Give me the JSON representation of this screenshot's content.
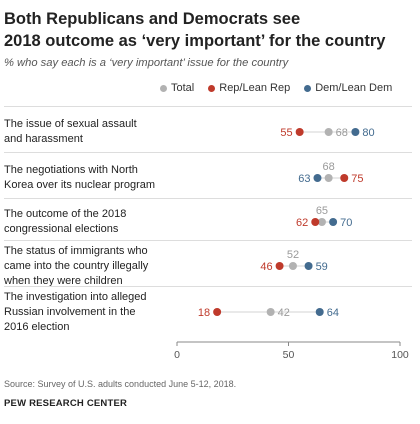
{
  "title_line1": "Both Republicans and Democrats see",
  "title_line2": "2018 outcome as ‘very important’ for the country",
  "subtitle": "% who say each is a ‘very important’ issue for the country",
  "legend": {
    "total": "Total",
    "rep": "Rep/Lean Rep",
    "dem": "Dem/Lean Dem"
  },
  "colors": {
    "total": "#b2b2b2",
    "rep": "#bf3a2b",
    "dem": "#436b8f",
    "axis": "#888888"
  },
  "chart_data": {
    "type": "scatter",
    "title": "Both Republicans and Democrats see 2018 outcome as ‘very important’ for the country",
    "subtitle": "% who say each is a ‘very important’ issue for the country",
    "xlim": [
      0,
      100
    ],
    "xticks": [
      "0",
      "50",
      "100"
    ],
    "categories": [
      [
        "The issue of sexual assault",
        "and harassment"
      ],
      [
        "The negotiations with North",
        "Korea over its nuclear program"
      ],
      [
        "The outcome of the 2018",
        "congressional elections"
      ],
      [
        "The status of immigrants who",
        "came into the country illegally",
        "when they were children"
      ],
      [
        "The investigation into alleged",
        "Russian involvement in the",
        "2016 election"
      ]
    ],
    "series": [
      {
        "name": "Total",
        "key": "total",
        "values": [
          68,
          68,
          65,
          52,
          42
        ]
      },
      {
        "name": "Rep/Lean Rep",
        "key": "rep",
        "values": [
          55,
          75,
          62,
          46,
          18
        ]
      },
      {
        "name": "Dem/Lean Dem",
        "key": "dem",
        "values": [
          80,
          63,
          70,
          59,
          64
        ]
      }
    ]
  },
  "source": "Source: Survey of U.S. adults conducted June 5-12, 2018.",
  "credit": "PEW RESEARCH CENTER"
}
